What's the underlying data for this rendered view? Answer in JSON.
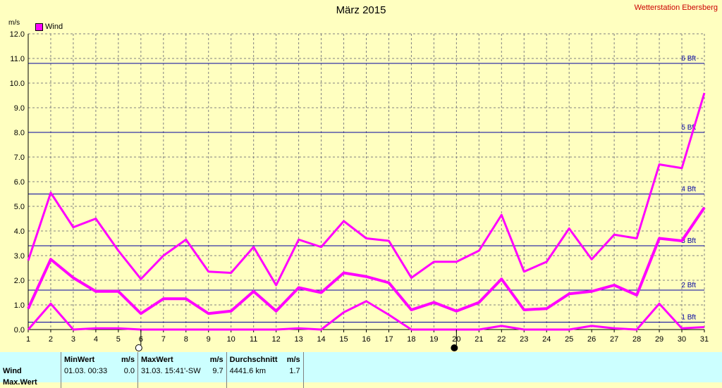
{
  "header": {
    "title": "März 2015",
    "station": "Wetterstation Ebersberg",
    "unit": "m/s",
    "legend_label": "Wind"
  },
  "colors": {
    "background": "#ffffc0",
    "series": "#ff00ff",
    "beaufort_lines": "#0000a0",
    "grid": "#808080",
    "station_text": "#cc0000",
    "table_bg": "#ccffff"
  },
  "chart_data": {
    "type": "line",
    "title": "März 2015",
    "ylabel": "m/s",
    "xlabel": "",
    "ylim": [
      0,
      12
    ],
    "xlim": [
      1,
      31
    ],
    "grid": true,
    "legend_position": "top-left",
    "x": [
      1,
      2,
      3,
      4,
      5,
      6,
      7,
      8,
      9,
      10,
      11,
      12,
      13,
      14,
      15,
      16,
      17,
      18,
      19,
      20,
      21,
      22,
      23,
      24,
      25,
      26,
      27,
      28,
      29,
      30,
      31
    ],
    "y_ticks": [
      "0.0",
      "1.0",
      "2.0",
      "3.0",
      "4.0",
      "5.0",
      "6.0",
      "7.0",
      "8.0",
      "9.0",
      "10.0",
      "11.0",
      "12.0"
    ],
    "x_ticks": [
      "1",
      "2",
      "3",
      "4",
      "5",
      "6",
      "7",
      "8",
      "9",
      "10",
      "11",
      "12",
      "13",
      "14",
      "15",
      "16",
      "17",
      "18",
      "19",
      "20",
      "21",
      "22",
      "23",
      "24",
      "25",
      "26",
      "27",
      "28",
      "29",
      "30",
      "31"
    ],
    "series": [
      {
        "name": "Wind",
        "values": [
          0.85,
          2.85,
          2.1,
          1.55,
          1.55,
          0.65,
          1.25,
          1.25,
          0.65,
          0.75,
          1.55,
          0.75,
          1.7,
          1.5,
          2.3,
          2.15,
          1.9,
          0.8,
          1.1,
          0.75,
          1.1,
          2.05,
          0.8,
          0.85,
          1.45,
          1.55,
          1.8,
          1.4,
          3.7,
          3.6,
          4.95
        ],
        "width": 4
      },
      {
        "values": [
          2.8,
          5.55,
          4.15,
          4.5,
          3.2,
          2.05,
          3.0,
          3.65,
          2.35,
          2.3,
          3.35,
          1.8,
          3.65,
          3.35,
          4.4,
          3.7,
          3.6,
          2.1,
          2.75,
          2.75,
          3.2,
          4.65,
          2.35,
          2.75,
          4.1,
          2.85,
          3.85,
          3.7,
          6.7,
          6.55,
          9.6
        ],
        "width": 3
      },
      {
        "values": [
          0,
          1.05,
          0,
          0.05,
          0.05,
          0,
          0,
          0,
          0,
          0,
          0,
          0,
          0.05,
          0,
          0.7,
          1.15,
          0.6,
          0,
          0,
          0,
          0,
          0.15,
          0,
          0,
          0,
          0.15,
          0.05,
          0,
          1.05,
          0.05,
          0.1
        ],
        "width": 3
      }
    ],
    "reference_lines": [
      {
        "label": "1 Bft",
        "value": 0.3
      },
      {
        "label": "2 Bft",
        "value": 1.6
      },
      {
        "label": "3 Bft",
        "value": 3.4
      },
      {
        "label": "4 Bft",
        "value": 5.5
      },
      {
        "label": "5 Bft",
        "value": 8.0
      },
      {
        "label": "6 Bft",
        "value": 10.8
      }
    ],
    "moon_phases": [
      {
        "day": 6,
        "phase": "full"
      },
      {
        "day": 20,
        "phase": "new"
      }
    ]
  },
  "stats": {
    "headers": {
      "minwert": "MinWert",
      "min_unit": "m/s",
      "maxwert": "MaxWert",
      "max_unit": "m/s",
      "durchschnitt": "Durchschnitt",
      "avg_unit": "m/s"
    },
    "rows": [
      {
        "label": "Wind",
        "min_time": "01.03.  00:33",
        "min_value": "0.0",
        "max_time": "31.03.  15:41'-SW",
        "max_value": "9.7",
        "distance": "4441.6 km",
        "avg_value": "1.7"
      },
      {
        "label": "Max.Wert"
      }
    ]
  }
}
